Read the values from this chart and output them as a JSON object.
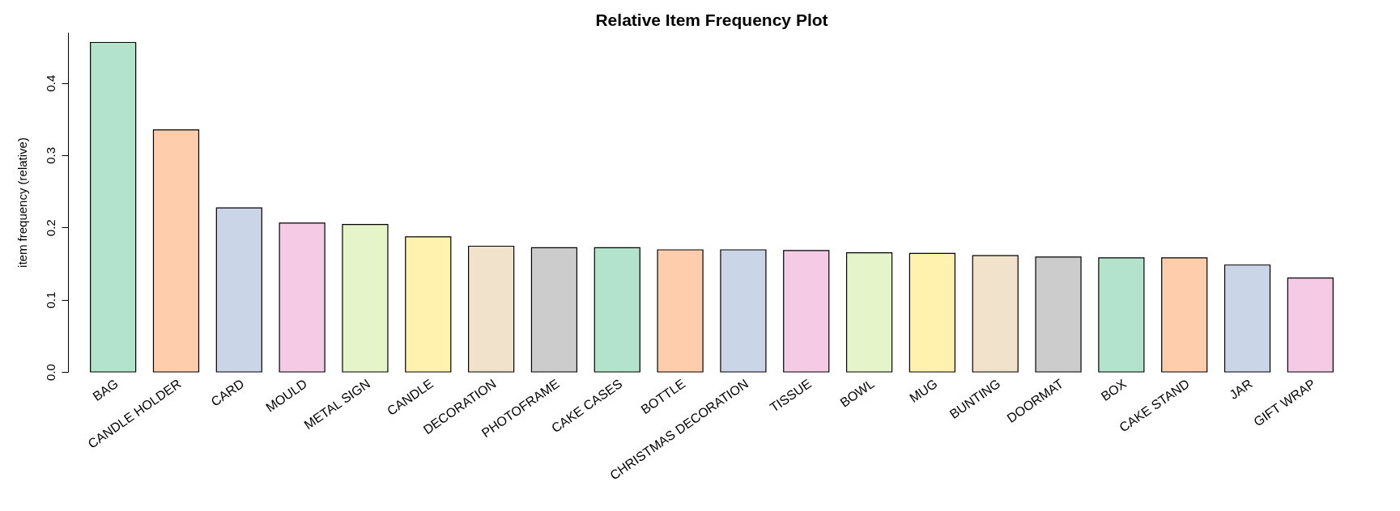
{
  "chart_data": {
    "type": "bar",
    "title": "Relative Item Frequency Plot",
    "ylabel": "item frequency (relative)",
    "categories": [
      "BAG",
      "CANDLE HOLDER",
      "CARD",
      "MOULD",
      "METAL SIGN",
      "CANDLE",
      "DECORATION",
      "PHOTOFRAME",
      "CAKE CASES",
      "BOTTLE",
      "CHRISTMAS DECORATION",
      "TISSUE",
      "BOWL",
      "MUG",
      "BUNTING",
      "DOORMAT",
      "BOX",
      "CAKE STAND",
      "JAR",
      "GIFT WRAP"
    ],
    "values": [
      0.456,
      0.335,
      0.227,
      0.206,
      0.204,
      0.187,
      0.174,
      0.172,
      0.172,
      0.169,
      0.169,
      0.168,
      0.165,
      0.164,
      0.161,
      0.159,
      0.158,
      0.158,
      0.148,
      0.13
    ],
    "colors": [
      "#b3e2cd",
      "#fdcdac",
      "#cbd5e8",
      "#f4cae4",
      "#e6f5c9",
      "#fff2ae",
      "#f1e2cc",
      "#cccccc",
      "#b3e2cd",
      "#fdcdac",
      "#cbd5e8",
      "#f4cae4",
      "#e6f5c9",
      "#fff2ae",
      "#f1e2cc",
      "#cccccc",
      "#b3e2cd",
      "#fdcdac",
      "#cbd5e8",
      "#f4cae4"
    ],
    "ylim": [
      0,
      0.47
    ],
    "yticks": [
      {
        "value": 0,
        "label": "0.0"
      },
      {
        "value": 0.1,
        "label": "0.1"
      },
      {
        "value": 0.2,
        "label": "0.2"
      },
      {
        "value": 0.3,
        "label": "0.3"
      },
      {
        "value": 0.4,
        "label": "0.4"
      }
    ],
    "grid": false
  }
}
